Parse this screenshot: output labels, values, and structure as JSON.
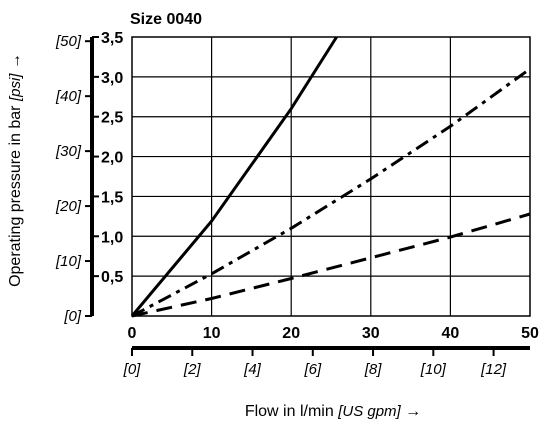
{
  "chart_data": {
    "type": "line",
    "title": "Size 0040",
    "xlabel_main": "Flow in l/min",
    "xlabel_unit": "[US gpm]",
    "xlabel_arrow": "→",
    "ylabel_main": "Operating pressure in bar",
    "ylabel_unit": "[psi]",
    "ylabel_arrow": "→",
    "xlim": [
      0,
      50
    ],
    "ylim": [
      0,
      3.5
    ],
    "x_ticks_primary": [
      {
        "value": 0,
        "label": "0"
      },
      {
        "value": 10,
        "label": "10"
      },
      {
        "value": 20,
        "label": "20"
      },
      {
        "value": 30,
        "label": "30"
      },
      {
        "value": 40,
        "label": "40"
      },
      {
        "value": 50,
        "label": "50"
      }
    ],
    "x_ticks_secondary": [
      {
        "value": 0,
        "label": "[0]"
      },
      {
        "value": 2,
        "label": "[2]"
      },
      {
        "value": 4,
        "label": "[4]"
      },
      {
        "value": 6,
        "label": "[6]"
      },
      {
        "value": 8,
        "label": "[8]"
      },
      {
        "value": 10,
        "label": "[10]"
      },
      {
        "value": 12,
        "label": "[12]"
      }
    ],
    "y_ticks_primary": [
      {
        "value": 0.5,
        "label": "0,5"
      },
      {
        "value": 1.0,
        "label": "1,0"
      },
      {
        "value": 1.5,
        "label": "1,5"
      },
      {
        "value": 2.0,
        "label": "2,0"
      },
      {
        "value": 2.5,
        "label": "2,5"
      },
      {
        "value": 3.0,
        "label": "3,0"
      },
      {
        "value": 3.5,
        "label": "3,5"
      }
    ],
    "y_ticks_secondary": [
      {
        "value": 0,
        "label": "[0]"
      },
      {
        "value": 10,
        "label": "[10]"
      },
      {
        "value": 20,
        "label": "[20]"
      },
      {
        "value": 30,
        "label": "[30]"
      },
      {
        "value": 40,
        "label": "[40]"
      },
      {
        "value": 50,
        "label": "[50]"
      }
    ],
    "series": [
      {
        "style": "solid",
        "x": [
          0,
          10,
          20,
          25.7
        ],
        "y": [
          0,
          1.19,
          2.6,
          3.5
        ]
      },
      {
        "style": "dash-dot",
        "x": [
          0,
          10,
          20,
          30,
          40,
          50
        ],
        "y": [
          0,
          0.53,
          1.1,
          1.72,
          2.38,
          3.1
        ]
      },
      {
        "style": "dashed",
        "x": [
          0,
          10,
          20,
          30,
          40,
          50
        ],
        "y": [
          0,
          0.22,
          0.47,
          0.73,
          0.99,
          1.28
        ]
      }
    ],
    "grid": true
  }
}
